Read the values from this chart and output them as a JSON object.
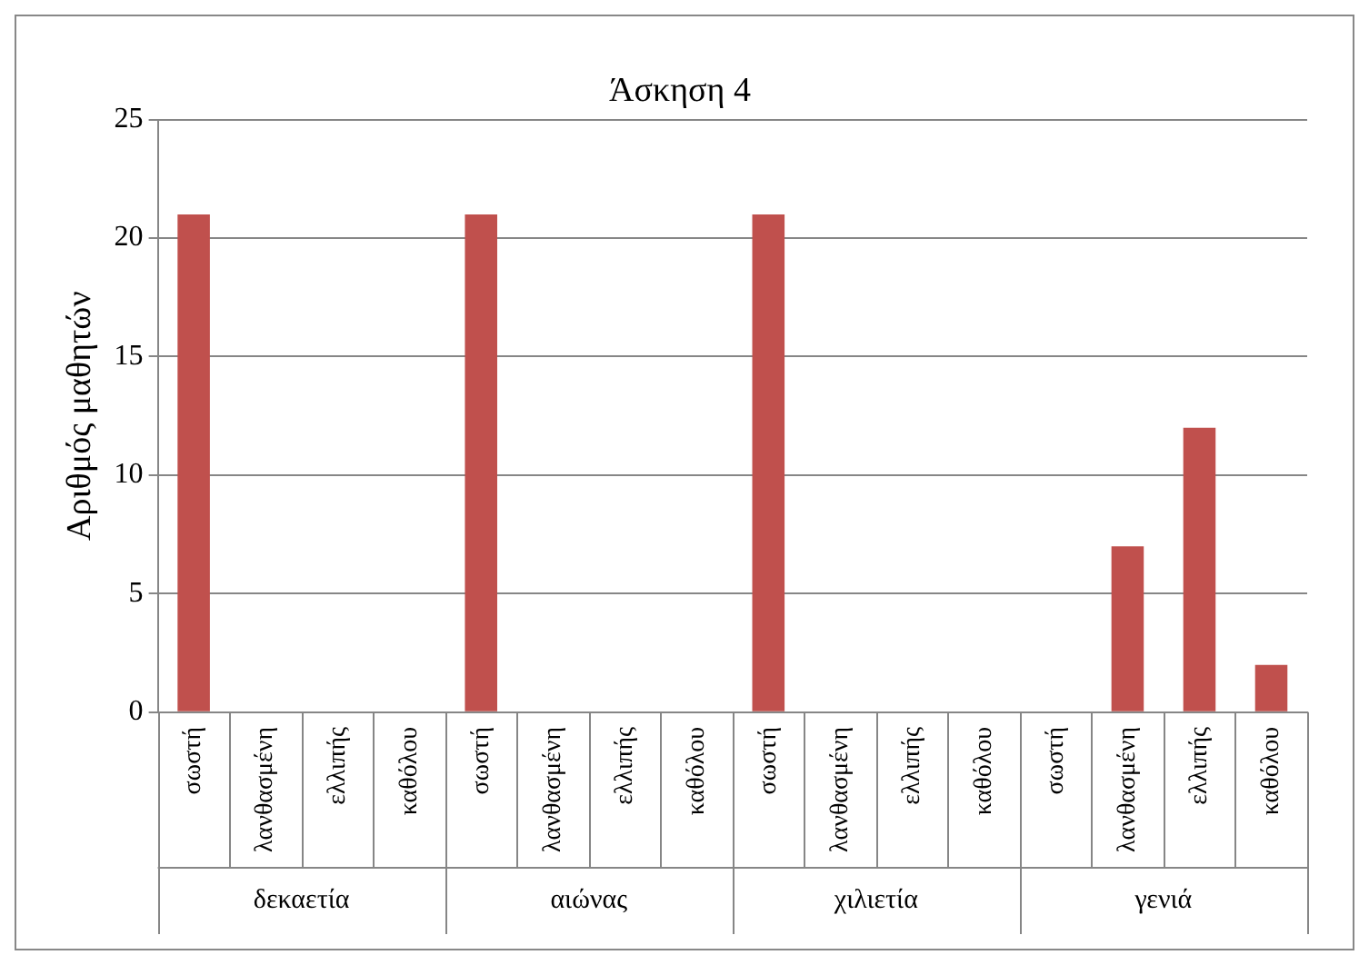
{
  "chart_data": {
    "type": "bar",
    "title": "Άσκηση 4",
    "ylabel": "Αριθμός μαθητών",
    "categories": [
      "σωστή",
      "λανθασμένη",
      "ελλιπής",
      "καθόλου",
      "σωστή",
      "λανθασμένη",
      "ελλιπής",
      "καθόλου",
      "σωστή",
      "λανθασμένη",
      "ελλιπής",
      "καθόλου",
      "σωστή",
      "λανθασμένη",
      "ελλιπής",
      "καθόλου"
    ],
    "values": [
      21,
      0,
      0,
      0,
      21,
      0,
      0,
      0,
      21,
      0,
      0,
      0,
      0,
      7,
      12,
      2
    ],
    "color": "#c0504d",
    "annotations": [
      "δεκαετία",
      "αιώνας",
      "χιλιετία",
      "γενιά"
    ],
    "ylim": [
      0,
      25
    ],
    "yticks": [
      0,
      5,
      10,
      15,
      20,
      25
    ],
    "grid": "y",
    "legend": false
  }
}
